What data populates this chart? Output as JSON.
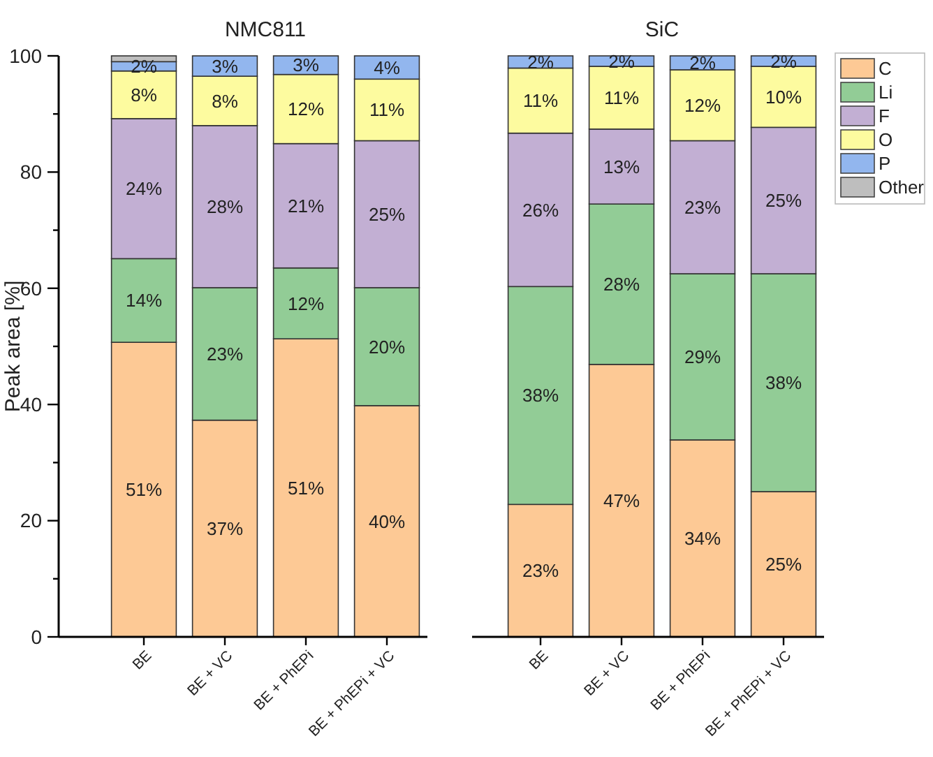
{
  "chart_data": [
    {
      "type": "bar",
      "title": "NMC811",
      "ylabel": "Peak area [%]",
      "stacked": true,
      "categories": [
        "BE",
        "BE + VC",
        "BE + PhEPi",
        "BE + PhEPi + VC"
      ],
      "ylim": [
        0,
        100
      ],
      "yticks": [
        0,
        {
          "value": 10,
          "label": null
        },
        20,
        {
          "value": 30,
          "label": null
        },
        40,
        {
          "value": 50,
          "label": null
        },
        60,
        {
          "value": 70,
          "label": null
        },
        80,
        {
          "value": 90,
          "label": null
        },
        100
      ],
      "series": [
        {
          "color": "#fdc995",
          "values": [
            50.7,
            37.3,
            51.3,
            39.8
          ],
          "value_labels": [
            "51%",
            "37%",
            "51%",
            "40%"
          ]
        },
        {
          "color": "#92cc96",
          "values": [
            14.4,
            22.8,
            12.2,
            20.3
          ],
          "value_labels": [
            "14%",
            "23%",
            "12%",
            "20%"
          ]
        },
        {
          "color": "#c2afd3",
          "values": [
            24.1,
            27.9,
            21.4,
            25.3
          ],
          "value_labels": [
            "24%",
            "28%",
            "21%",
            "25%"
          ]
        },
        {
          "color": "#fdfb9f",
          "values": [
            8.2,
            8.5,
            11.9,
            10.6
          ],
          "value_labels": [
            "8%",
            "8%",
            "12%",
            "11%"
          ]
        },
        {
          "color": "#92b6ee",
          "values": [
            1.6,
            3.5,
            3.2,
            4.0
          ],
          "value_labels": [
            "2%",
            "3%",
            "3%",
            "4%"
          ]
        },
        {
          "color": "#bebebe",
          "values": [
            1.0,
            0,
            0,
            0
          ],
          "value_labels": [
            null,
            null,
            null,
            null
          ]
        }
      ]
    },
    {
      "type": "bar",
      "title": "SiC",
      "stacked": true,
      "tick_labels": "x",
      "legend": "right",
      "categories": [
        "BE",
        "BE + VC",
        "BE + PhEPi",
        "BE + PhEPi + VC"
      ],
      "ylim": [
        0,
        100
      ],
      "series": [
        {
          "name": "C",
          "color": "#fdc995",
          "values": [
            22.8,
            46.9,
            33.9,
            25.0
          ],
          "value_labels": [
            "23%",
            "47%",
            "34%",
            "25%"
          ]
        },
        {
          "name": "Li",
          "color": "#92cc96",
          "values": [
            37.5,
            27.6,
            28.6,
            37.5
          ],
          "value_labels": [
            "38%",
            "28%",
            "29%",
            "38%"
          ]
        },
        {
          "name": "F",
          "color": "#c2afd3",
          "values": [
            26.4,
            12.9,
            22.9,
            25.2
          ],
          "value_labels": [
            "26%",
            "13%",
            "23%",
            "25%"
          ]
        },
        {
          "name": "O",
          "color": "#fdfb9f",
          "values": [
            11.2,
            10.8,
            12.2,
            10.5
          ],
          "value_labels": [
            "11%",
            "11%",
            "12%",
            "10%"
          ]
        },
        {
          "name": "P",
          "color": "#92b6ee",
          "values": [
            2.1,
            1.8,
            2.4,
            1.8
          ],
          "value_labels": [
            "2%",
            "2%",
            "2%",
            "2%"
          ]
        },
        {
          "name": "Other",
          "color": "#bebebe",
          "values": [
            0,
            0,
            0,
            0
          ],
          "value_labels": [
            null,
            null,
            null,
            null
          ]
        }
      ]
    }
  ]
}
